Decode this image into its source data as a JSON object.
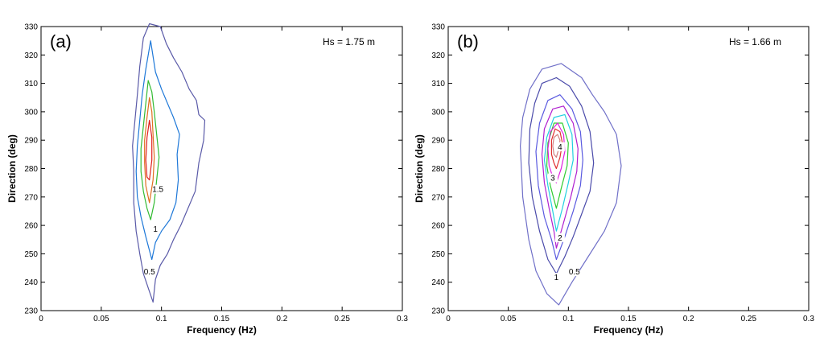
{
  "chart_data": [
    {
      "type": "contour",
      "panel_label": "(a)",
      "annotation": "Hs = 1.75 m",
      "xlabel": "Frequency (Hz)",
      "ylabel": "Direction (deg)",
      "xlim": [
        0,
        0.3
      ],
      "ylim": [
        230,
        330
      ],
      "xticks": [
        "0",
        "0.05",
        "0.1",
        "0.15",
        "0.2",
        "0.25",
        "0.3"
      ],
      "yticks": [
        "230",
        "240",
        "250",
        "260",
        "270",
        "280",
        "290",
        "300",
        "310",
        "320",
        "330"
      ],
      "contours": [
        {
          "level": "0.5",
          "color": "#5a5aa8",
          "label_at": [
            0.09,
            243
          ],
          "points": [
            [
              0.093,
              233
            ],
            [
              0.095,
              241
            ],
            [
              0.099,
              246
            ],
            [
              0.105,
              250
            ],
            [
              0.11,
              255
            ],
            [
              0.116,
              260
            ],
            [
              0.122,
              266
            ],
            [
              0.128,
              272
            ],
            [
              0.131,
              282
            ],
            [
              0.135,
              290
            ],
            [
              0.136,
              297
            ],
            [
              0.131,
              299
            ],
            [
              0.129,
              304
            ],
            [
              0.123,
              308
            ],
            [
              0.117,
              314
            ],
            [
              0.11,
              319
            ],
            [
              0.104,
              324
            ],
            [
              0.099,
              330
            ],
            [
              0.09,
              331
            ],
            [
              0.085,
              326
            ],
            [
              0.082,
              316
            ],
            [
              0.08,
              306
            ],
            [
              0.078,
              297
            ],
            [
              0.076,
              288
            ],
            [
              0.077,
              279
            ],
            [
              0.077,
              268
            ],
            [
              0.079,
              258
            ],
            [
              0.082,
              250
            ],
            [
              0.085,
              243
            ],
            [
              0.089,
              238
            ]
          ]
        },
        {
          "level": "1",
          "color": "#1e78d8",
          "label_at": [
            0.095,
            258
          ],
          "points": [
            [
              0.092,
              248
            ],
            [
              0.095,
              254
            ],
            [
              0.1,
              258
            ],
            [
              0.107,
              262
            ],
            [
              0.112,
              268
            ],
            [
              0.114,
              276
            ],
            [
              0.113,
              285
            ],
            [
              0.115,
              292
            ],
            [
              0.11,
              298
            ],
            [
              0.105,
              303
            ],
            [
              0.1,
              308
            ],
            [
              0.095,
              314
            ],
            [
              0.091,
              325
            ],
            [
              0.087,
              315
            ],
            [
              0.084,
              306
            ],
            [
              0.082,
              297
            ],
            [
              0.08,
              288
            ],
            [
              0.079,
              279
            ],
            [
              0.08,
              270
            ],
            [
              0.083,
              263
            ],
            [
              0.087,
              256
            ]
          ]
        },
        {
          "level": "1.5",
          "color": "#33bb33",
          "label_at": [
            0.097,
            272
          ],
          "points": [
            [
              0.091,
              262
            ],
            [
              0.094,
              268
            ],
            [
              0.096,
              276
            ],
            [
              0.098,
              284
            ],
            [
              0.096,
              292
            ],
            [
              0.094,
              300
            ],
            [
              0.092,
              307
            ],
            [
              0.089,
              311
            ],
            [
              0.087,
              303
            ],
            [
              0.085,
              295
            ],
            [
              0.083,
              287
            ],
            [
              0.083,
              279
            ],
            [
              0.085,
              272
            ],
            [
              0.088,
              266
            ]
          ]
        },
        {
          "level": "",
          "color": "#e07020",
          "points": [
            [
              0.09,
              268
            ],
            [
              0.093,
              276
            ],
            [
              0.094,
              284
            ],
            [
              0.093,
              292
            ],
            [
              0.092,
              300
            ],
            [
              0.09,
              305
            ],
            [
              0.088,
              298
            ],
            [
              0.086,
              290
            ],
            [
              0.086,
              282
            ],
            [
              0.087,
              274
            ]
          ]
        },
        {
          "level": "",
          "color": "#e02020",
          "points": [
            [
              0.09,
              276
            ],
            [
              0.092,
              283
            ],
            [
              0.092,
              291
            ],
            [
              0.09,
              297
            ],
            [
              0.088,
              291
            ],
            [
              0.087,
              283
            ],
            [
              0.088,
              277
            ]
          ]
        }
      ]
    },
    {
      "type": "contour",
      "panel_label": "(b)",
      "annotation": "Hs = 1.66 m",
      "xlabel": "Frequency (Hz)",
      "ylabel": "Direction (deg)",
      "xlim": [
        0,
        0.3
      ],
      "ylim": [
        230,
        330
      ],
      "xticks": [
        "0",
        "0.05",
        "0.1",
        "0.15",
        "0.2",
        "0.25",
        "0.3"
      ],
      "yticks": [
        "230",
        "240",
        "250",
        "260",
        "270",
        "280",
        "290",
        "300",
        "310",
        "320",
        "330"
      ],
      "contours": [
        {
          "level": "0.5",
          "color": "#7070c8",
          "label_at": [
            0.105,
            243
          ],
          "points": [
            [
              0.092,
              232
            ],
            [
              0.103,
              240
            ],
            [
              0.115,
              248
            ],
            [
              0.13,
              258
            ],
            [
              0.14,
              268
            ],
            [
              0.144,
              281
            ],
            [
              0.14,
              292
            ],
            [
              0.13,
              300
            ],
            [
              0.12,
              306
            ],
            [
              0.111,
              312
            ],
            [
              0.094,
              317
            ],
            [
              0.078,
              315
            ],
            [
              0.068,
              308
            ],
            [
              0.062,
              298
            ],
            [
              0.06,
              288
            ],
            [
              0.062,
              270
            ],
            [
              0.067,
              255
            ],
            [
              0.073,
              244
            ],
            [
              0.082,
              236
            ]
          ]
        },
        {
          "level": "1",
          "color": "#4a4aaa",
          "label_at": [
            0.09,
            241
          ],
          "points": [
            [
              0.09,
              243
            ],
            [
              0.097,
              249
            ],
            [
              0.104,
              256
            ],
            [
              0.111,
              264
            ],
            [
              0.118,
              272
            ],
            [
              0.121,
              282
            ],
            [
              0.118,
              293
            ],
            [
              0.111,
              302
            ],
            [
              0.101,
              309
            ],
            [
              0.09,
              312
            ],
            [
              0.078,
              310
            ],
            [
              0.072,
              303
            ],
            [
              0.068,
              294
            ],
            [
              0.067,
              282
            ],
            [
              0.07,
              270
            ],
            [
              0.076,
              258
            ],
            [
              0.083,
              248
            ]
          ]
        },
        {
          "level": "",
          "color": "#5a5ae0",
          "points": [
            [
              0.09,
              248
            ],
            [
              0.097,
              256
            ],
            [
              0.104,
              265
            ],
            [
              0.11,
              274
            ],
            [
              0.112,
              283
            ],
            [
              0.11,
              293
            ],
            [
              0.103,
              301
            ],
            [
              0.093,
              306
            ],
            [
              0.083,
              304
            ],
            [
              0.076,
              296
            ],
            [
              0.073,
              286
            ],
            [
              0.075,
              274
            ],
            [
              0.08,
              263
            ],
            [
              0.086,
              255
            ]
          ]
        },
        {
          "level": "2",
          "color": "#b020d0",
          "label_at": [
            0.093,
            255
          ],
          "points": [
            [
              0.09,
              252
            ],
            [
              0.096,
              261
            ],
            [
              0.102,
              270
            ],
            [
              0.107,
              279
            ],
            [
              0.108,
              287
            ],
            [
              0.104,
              296
            ],
            [
              0.096,
              302
            ],
            [
              0.087,
              301
            ],
            [
              0.08,
              294
            ],
            [
              0.078,
              285
            ],
            [
              0.08,
              275
            ],
            [
              0.084,
              266
            ],
            [
              0.088,
              258
            ]
          ]
        },
        {
          "level": "",
          "color": "#20d0e0",
          "points": [
            [
              0.09,
              258
            ],
            [
              0.095,
              266
            ],
            [
              0.1,
              275
            ],
            [
              0.104,
              283
            ],
            [
              0.103,
              292
            ],
            [
              0.097,
              299
            ],
            [
              0.088,
              298
            ],
            [
              0.082,
              291
            ],
            [
              0.08,
              283
            ],
            [
              0.083,
              274
            ],
            [
              0.087,
              265
            ]
          ]
        },
        {
          "level": "",
          "color": "#30cc30",
          "points": [
            [
              0.09,
              266
            ],
            [
              0.094,
              273
            ],
            [
              0.099,
              281
            ],
            [
              0.1,
              289
            ],
            [
              0.095,
              296
            ],
            [
              0.088,
              296
            ],
            [
              0.083,
              289
            ],
            [
              0.082,
              281
            ],
            [
              0.085,
              274
            ]
          ]
        },
        {
          "level": "3",
          "color": "#e020e0",
          "label_at": [
            0.087,
            276
          ],
          "points": [
            [
              0.09,
              275
            ],
            [
              0.094,
              280
            ],
            [
              0.097,
              286
            ],
            [
              0.096,
              292
            ],
            [
              0.091,
              296
            ],
            [
              0.085,
              293
            ],
            [
              0.083,
              287
            ],
            [
              0.084,
              281
            ],
            [
              0.087,
              277
            ]
          ]
        },
        {
          "level": "",
          "color": "#e03030",
          "points": [
            [
              0.09,
              280
            ],
            [
              0.093,
              284
            ],
            [
              0.095,
              289
            ],
            [
              0.093,
              293
            ],
            [
              0.089,
              294
            ],
            [
              0.086,
              290
            ],
            [
              0.086,
              285
            ],
            [
              0.088,
              282
            ]
          ]
        },
        {
          "level": "4",
          "color": "#d08080",
          "label_at": [
            0.093,
            287
          ],
          "points": [
            [
              0.09,
              284
            ],
            [
              0.092,
              287
            ],
            [
              0.093,
              290
            ],
            [
              0.091,
              292
            ],
            [
              0.088,
              291
            ],
            [
              0.087,
              288
            ],
            [
              0.088,
              285
            ]
          ]
        }
      ]
    }
  ]
}
